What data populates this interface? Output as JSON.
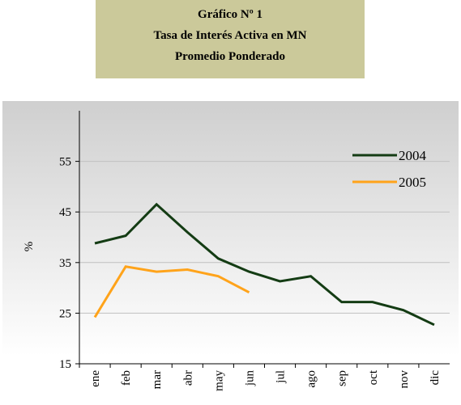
{
  "chart_data": {
    "type": "line",
    "title": "Gráfico Nº 1",
    "subtitle": [
      "Tasa de Interés Activa en MN",
      "Promedio Ponderado"
    ],
    "y_label": "%",
    "categories": [
      "ene",
      "feb",
      "mar",
      "abr",
      "may",
      "jun",
      "jul",
      "ago",
      "sep",
      "oct",
      "nov",
      "dic"
    ],
    "series": [
      {
        "name": "2004",
        "color": "#143c14",
        "values": [
          38.8,
          40.3,
          46.5,
          41,
          35.8,
          33.2,
          31.3,
          32.3,
          27.2,
          27.2,
          25.6,
          22.7
        ]
      },
      {
        "name": "2005",
        "color": "#ffa31a",
        "values": [
          24.2,
          34.2,
          33.2,
          33.6,
          32.3,
          29.1,
          null,
          null,
          null,
          null,
          null,
          null
        ]
      }
    ],
    "ylim": [
      15,
      65
    ],
    "yticks": [
      15,
      25,
      35,
      45,
      55
    ],
    "grid": true,
    "legend": "upper right"
  }
}
